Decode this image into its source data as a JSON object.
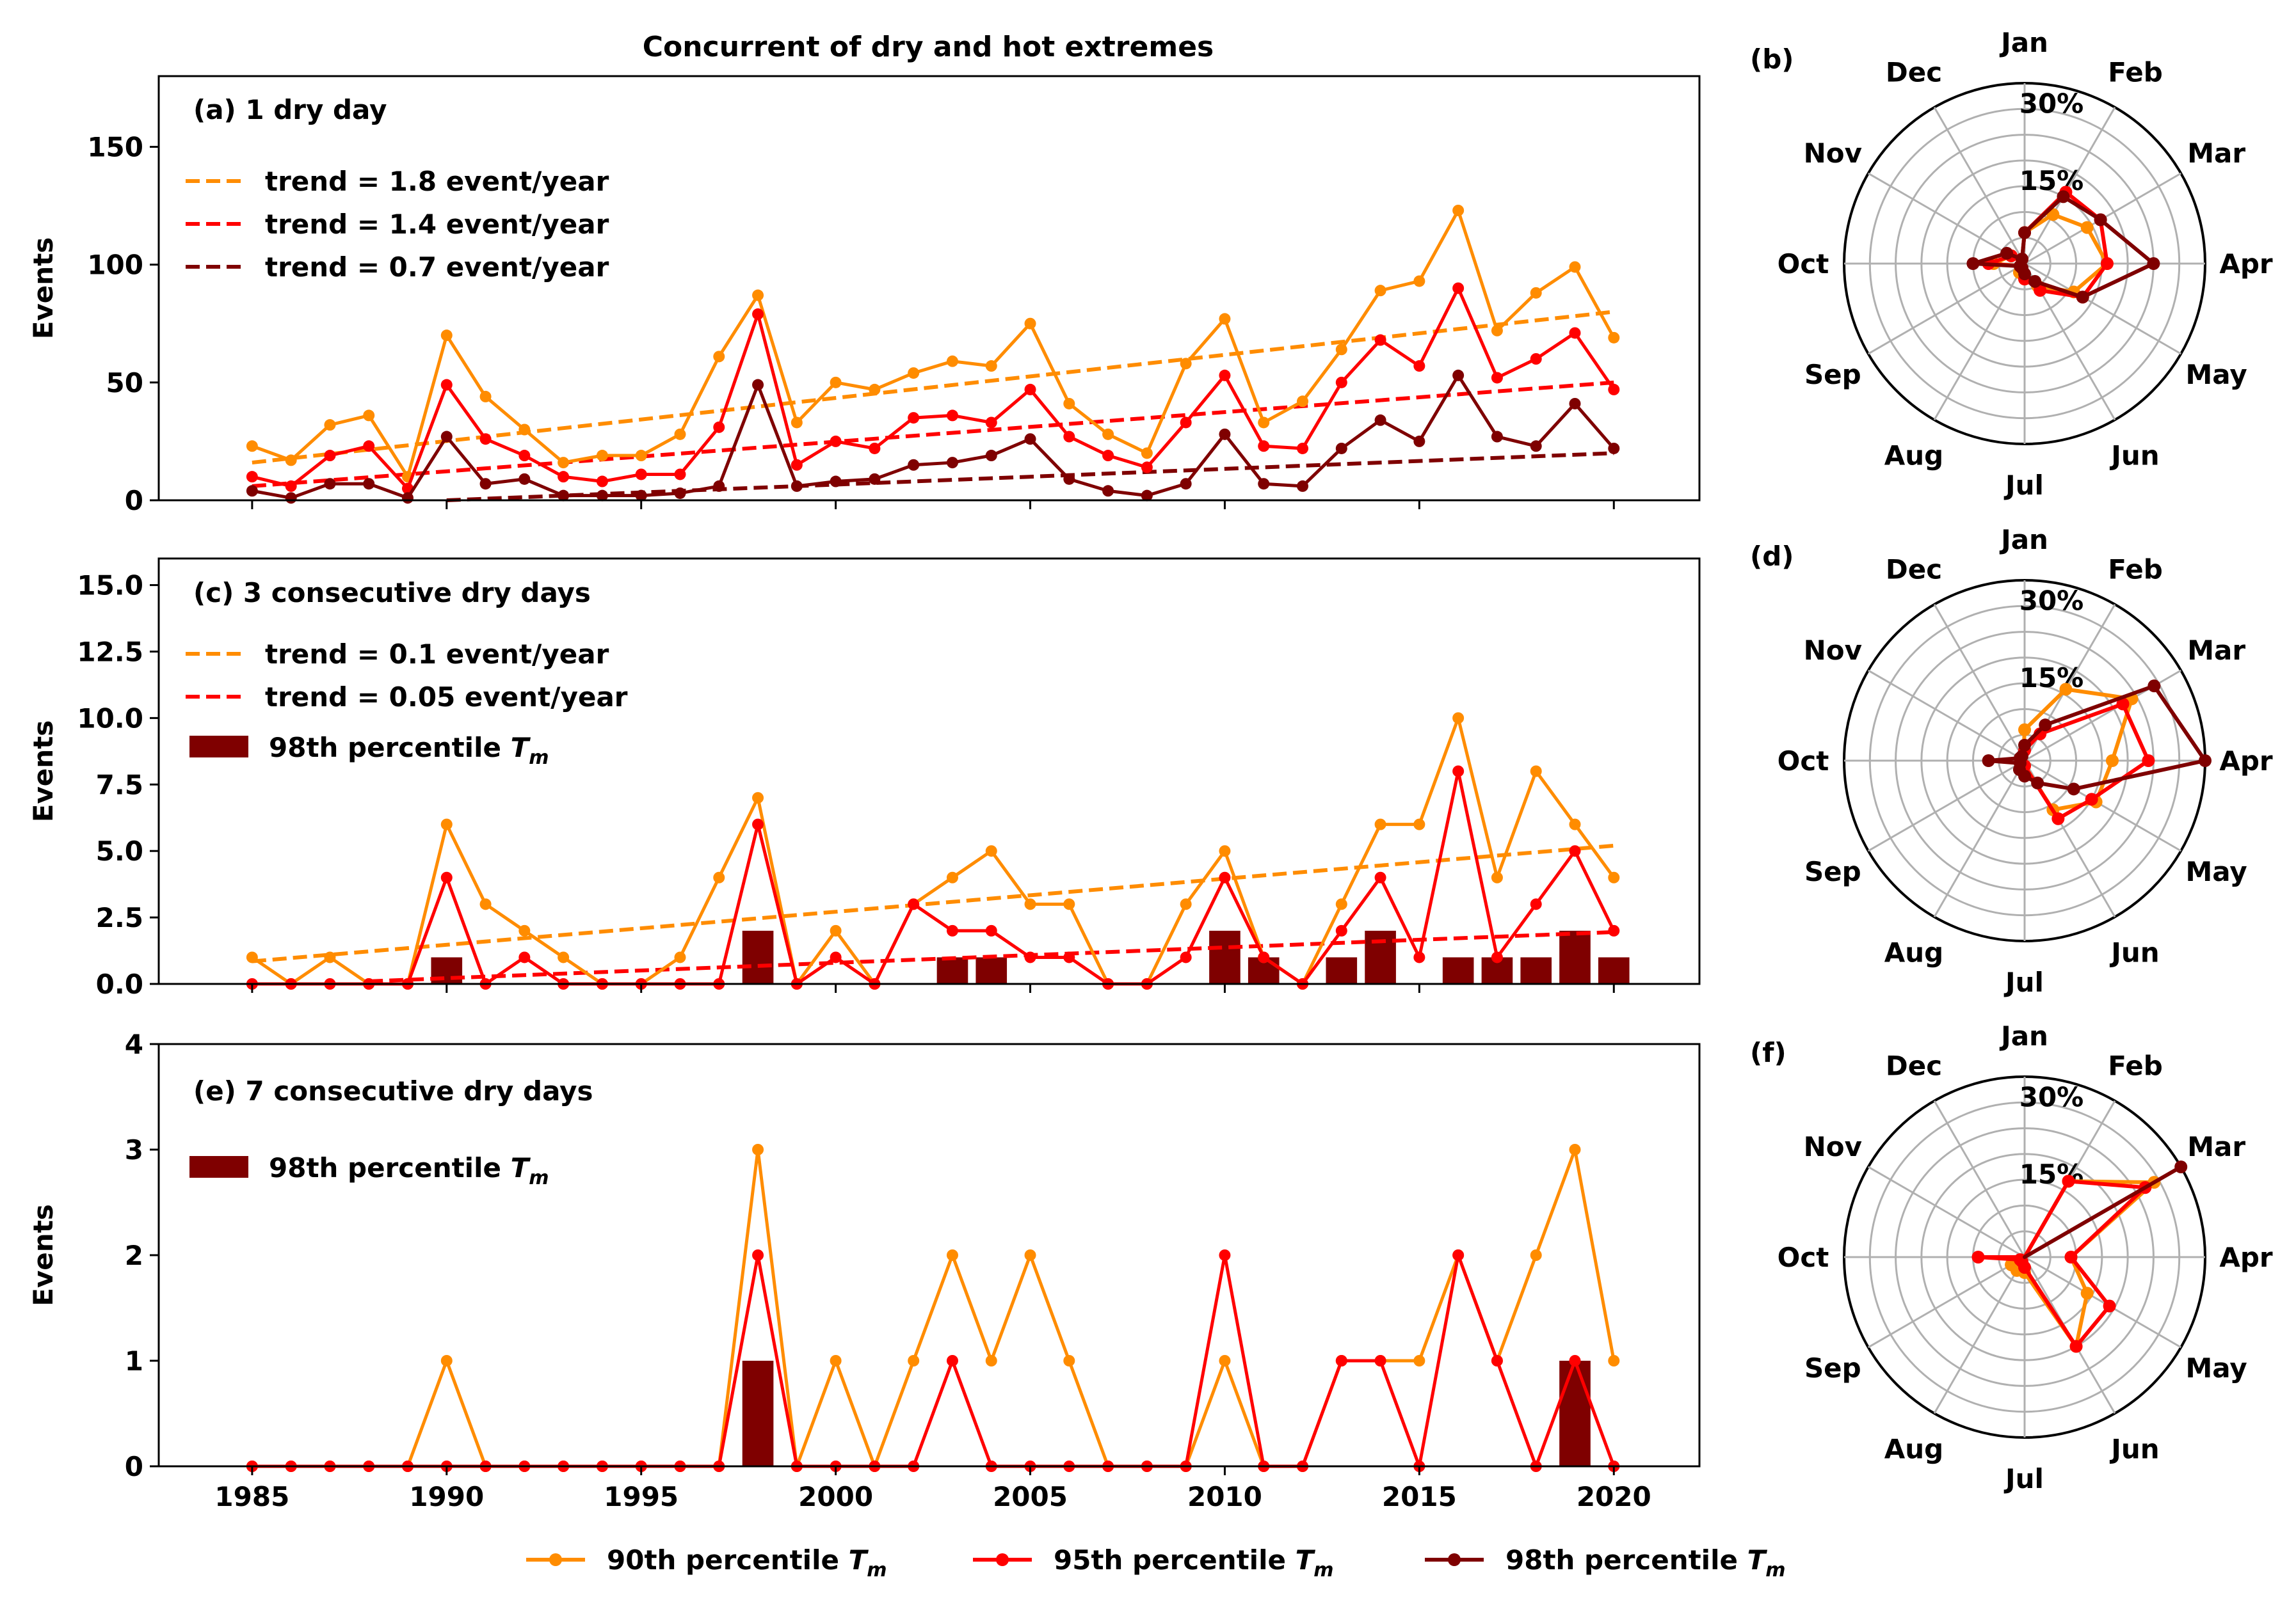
{
  "title": "Concurrent of dry and hot extremes",
  "colors": {
    "p90": "#ff8c00",
    "p95": "#ff0000",
    "p98": "#7f0000",
    "grid": "#b0b0b0"
  },
  "bottom_legend": {
    "p90": {
      "label": "90th percentile ",
      "sub_main": "T",
      "sub_index": "m"
    },
    "p95": {
      "label": "95th percentile ",
      "sub_main": "T",
      "sub_index": "m"
    },
    "p98": {
      "label": "98th percentile ",
      "sub_main": "T",
      "sub_index": "m"
    }
  },
  "chart_data": [
    {
      "id": "a",
      "type": "line",
      "panel_label": "(a) 1 dry day",
      "ylabel": "Events",
      "xlim": [
        1982.6,
        2022.2
      ],
      "ylim": [
        0,
        180
      ],
      "yticks": [
        0,
        50,
        100,
        150
      ],
      "ytick_labels": [
        "0",
        "50",
        "100",
        "150"
      ],
      "xticks": [
        1985,
        1990,
        1995,
        2000,
        2005,
        2010,
        2015,
        2020
      ],
      "show_xtick_labels": false,
      "x": [
        1985,
        1986,
        1987,
        1988,
        1989,
        1990,
        1991,
        1992,
        1993,
        1994,
        1995,
        1996,
        1997,
        1998,
        1999,
        2000,
        2001,
        2002,
        2003,
        2004,
        2005,
        2006,
        2007,
        2008,
        2009,
        2010,
        2011,
        2012,
        2013,
        2014,
        2015,
        2016,
        2017,
        2018,
        2019,
        2020
      ],
      "series": [
        {
          "name": "90th percentile Tm",
          "key": "p90",
          "values": [
            23,
            17,
            32,
            36,
            10,
            70,
            44,
            30,
            16,
            19,
            19,
            28,
            61,
            87,
            33,
            50,
            47,
            54,
            59,
            57,
            75,
            41,
            28,
            20,
            58,
            77,
            33,
            42,
            64,
            89,
            93,
            123,
            72,
            88,
            99,
            69
          ]
        },
        {
          "name": "95th percentile Tm",
          "key": "p95",
          "values": [
            10,
            6,
            19,
            23,
            5,
            49,
            26,
            19,
            10,
            8,
            11,
            11,
            31,
            79,
            15,
            25,
            22,
            35,
            36,
            33,
            47,
            27,
            19,
            14,
            33,
            53,
            23,
            22,
            50,
            68,
            57,
            90,
            52,
            60,
            71,
            47
          ]
        },
        {
          "name": "98th percentile Tm",
          "key": "p98",
          "values": [
            4,
            1,
            7,
            7,
            1,
            27,
            7,
            9,
            2,
            2,
            2,
            3,
            6,
            49,
            6,
            8,
            9,
            15,
            16,
            19,
            26,
            9,
            4,
            2,
            7,
            28,
            7,
            6,
            22,
            34,
            25,
            53,
            27,
            23,
            41,
            22
          ]
        }
      ],
      "trends": [
        {
          "key": "p90",
          "label": "trend = 1.8 event/year",
          "x": [
            1985,
            2020
          ],
          "y": [
            16,
            80
          ]
        },
        {
          "key": "p95",
          "label": "trend = 1.4 event/year",
          "x": [
            1985,
            2020
          ],
          "y": [
            6,
            50
          ]
        },
        {
          "key": "p98",
          "label": "trend = 0.7 event/year",
          "x": [
            1990,
            2020
          ],
          "y": [
            0,
            20
          ]
        }
      ],
      "bars": []
    },
    {
      "id": "c",
      "type": "line",
      "panel_label": "(c) 3 consecutive dry days",
      "ylabel": "Events",
      "xlim": [
        1982.6,
        2022.2
      ],
      "ylim": [
        0,
        16
      ],
      "yticks": [
        0,
        2.5,
        5,
        7.5,
        10,
        12.5,
        15
      ],
      "ytick_labels": [
        "0.0",
        "2.5",
        "5.0",
        "7.5",
        "10.0",
        "12.5",
        "15.0"
      ],
      "xticks": [
        1985,
        1990,
        1995,
        2000,
        2005,
        2010,
        2015,
        2020
      ],
      "show_xtick_labels": false,
      "x": [
        1985,
        1986,
        1987,
        1988,
        1989,
        1990,
        1991,
        1992,
        1993,
        1994,
        1995,
        1996,
        1997,
        1998,
        1999,
        2000,
        2001,
        2002,
        2003,
        2004,
        2005,
        2006,
        2007,
        2008,
        2009,
        2010,
        2011,
        2012,
        2013,
        2014,
        2015,
        2016,
        2017,
        2018,
        2019,
        2020
      ],
      "series": [
        {
          "name": "90th percentile Tm",
          "key": "p90",
          "values": [
            1,
            0,
            1,
            0,
            0,
            6,
            3,
            2,
            1,
            0,
            0,
            1,
            4,
            7,
            0,
            2,
            0,
            3,
            4,
            5,
            3,
            3,
            0,
            0,
            3,
            5,
            1,
            0,
            3,
            6,
            6,
            10,
            4,
            8,
            6,
            4
          ]
        },
        {
          "name": "95th percentile Tm",
          "key": "p95",
          "values": [
            0,
            0,
            0,
            0,
            0,
            4,
            0,
            1,
            0,
            0,
            0,
            0,
            0,
            6,
            0,
            1,
            0,
            3,
            2,
            2,
            1,
            1,
            0,
            0,
            1,
            4,
            1,
            0,
            2,
            4,
            1,
            8,
            1,
            3,
            5,
            2
          ]
        }
      ],
      "trends": [
        {
          "key": "p90",
          "label": "trend = 0.1 event/year",
          "x": [
            1985,
            2020
          ],
          "y": [
            0.85,
            5.2
          ]
        },
        {
          "key": "p95",
          "label": "trend = 0.05 event/year",
          "x": [
            1988,
            2020
          ],
          "y": [
            0.1,
            1.95
          ]
        }
      ],
      "bars": [
        {
          "key": "p98",
          "label": "98th percentile ",
          "sub_main": "T",
          "sub_index": "m",
          "x": [
            1990,
            1998,
            2003,
            2004,
            2010,
            2011,
            2013,
            2014,
            2016,
            2017,
            2018,
            2019,
            2020
          ],
          "values": [
            1,
            2,
            1,
            1,
            2,
            1,
            1,
            2,
            1,
            1,
            1,
            2,
            1
          ]
        }
      ]
    },
    {
      "id": "e",
      "type": "line",
      "panel_label": "(e) 7 consecutive dry days",
      "ylabel": "Events",
      "xlim": [
        1982.6,
        2022.2
      ],
      "ylim": [
        0,
        4
      ],
      "yticks": [
        0,
        1,
        2,
        3,
        4
      ],
      "ytick_labels": [
        "0",
        "1",
        "2",
        "3",
        "4"
      ],
      "xticks": [
        1985,
        1990,
        1995,
        2000,
        2005,
        2010,
        2015,
        2020
      ],
      "show_xtick_labels": true,
      "xtick_labels": [
        "1985",
        "1990",
        "1995",
        "2000",
        "2005",
        "2010",
        "2015",
        "2020"
      ],
      "x": [
        1985,
        1986,
        1987,
        1988,
        1989,
        1990,
        1991,
        1992,
        1993,
        1994,
        1995,
        1996,
        1997,
        1998,
        1999,
        2000,
        2001,
        2002,
        2003,
        2004,
        2005,
        2006,
        2007,
        2008,
        2009,
        2010,
        2011,
        2012,
        2013,
        2014,
        2015,
        2016,
        2017,
        2018,
        2019,
        2020
      ],
      "series": [
        {
          "name": "90th percentile Tm",
          "key": "p90",
          "values": [
            0,
            0,
            0,
            0,
            0,
            1,
            0,
            0,
            0,
            0,
            0,
            0,
            0,
            3,
            0,
            1,
            0,
            1,
            2,
            1,
            2,
            1,
            0,
            0,
            0,
            1,
            0,
            0,
            1,
            1,
            1,
            2,
            1,
            2,
            3,
            1
          ]
        },
        {
          "name": "95th percentile Tm",
          "key": "p95",
          "values": [
            0,
            0,
            0,
            0,
            0,
            0,
            0,
            0,
            0,
            0,
            0,
            0,
            0,
            2,
            0,
            0,
            0,
            0,
            1,
            0,
            0,
            0,
            0,
            0,
            0,
            2,
            0,
            0,
            1,
            1,
            0,
            2,
            1,
            0,
            1,
            0
          ]
        }
      ],
      "trends": [],
      "bars": [
        {
          "key": "p98",
          "label": "98th percentile ",
          "sub_main": "T",
          "sub_index": "m",
          "x": [
            1998,
            2019
          ],
          "values": [
            1,
            1
          ]
        }
      ]
    },
    {
      "id": "b",
      "type": "radar",
      "panel_label": "(b)",
      "months": [
        "Jan",
        "Feb",
        "Mar",
        "Apr",
        "May",
        "Jun",
        "Jul",
        "Aug",
        "Sep",
        "Oct",
        "Nov",
        "Dec"
      ],
      "rmax": 35,
      "rings": [
        5,
        10,
        15,
        20,
        25,
        30,
        35
      ],
      "ring_labels": [
        {
          "r": 15,
          "text": "15%"
        },
        {
          "r": 30,
          "text": "30%"
        }
      ],
      "series": [
        {
          "key": "p90",
          "values": [
            6,
            11,
            14,
            16,
            11,
            5,
            3,
            2,
            1,
            6,
            3,
            1
          ]
        },
        {
          "key": "p95",
          "values": [
            6,
            16,
            17,
            16,
            13,
            6,
            3,
            1,
            1,
            7,
            3,
            1
          ]
        },
        {
          "key": "p98",
          "values": [
            6,
            15,
            17,
            25,
            13,
            4,
            2,
            1,
            1,
            10,
            4,
            1
          ]
        }
      ]
    },
    {
      "id": "d",
      "type": "radar",
      "panel_label": "(d)",
      "months": [
        "Jan",
        "Feb",
        "Mar",
        "Apr",
        "May",
        "Jun",
        "Jul",
        "Aug",
        "Sep",
        "Oct",
        "Nov",
        "Dec"
      ],
      "rmax": 35,
      "rings": [
        5,
        10,
        15,
        20,
        25,
        30,
        35
      ],
      "ring_labels": [
        {
          "r": 15,
          "text": "15%"
        },
        {
          "r": 30,
          "text": "30%"
        }
      ],
      "series": [
        {
          "key": "p90",
          "values": [
            6,
            16,
            24,
            17,
            16,
            11,
            1,
            1,
            0.5,
            0.5,
            0.5,
            0.5
          ]
        },
        {
          "key": "p95",
          "values": [
            2,
            6,
            22,
            24,
            15,
            13,
            1,
            1,
            0.5,
            0.5,
            0.5,
            0.5
          ]
        },
        {
          "key": "p98",
          "values": [
            3,
            8,
            29,
            35,
            11,
            5,
            3,
            2,
            1,
            7,
            1,
            1
          ]
        }
      ]
    },
    {
      "id": "f",
      "type": "radar",
      "panel_label": "(f)",
      "months": [
        "Jan",
        "Feb",
        "Mar",
        "Apr",
        "May",
        "Jun",
        "Jul",
        "Aug",
        "Sep",
        "Oct",
        "Nov",
        "Dec"
      ],
      "rmax": 35,
      "rings": [
        5,
        10,
        15,
        20,
        25,
        30,
        35
      ],
      "ring_labels": [
        {
          "r": 15,
          "text": "15%"
        },
        {
          "r": 30,
          "text": "30%"
        }
      ],
      "series": [
        {
          "key": "p90",
          "values": [
            0,
            17,
            29,
            9,
            14,
            20,
            3,
            3,
            3,
            0,
            0,
            0
          ]
        },
        {
          "key": "p95",
          "values": [
            0,
            17,
            27,
            9,
            19,
            20,
            2,
            1,
            1,
            9,
            0,
            0
          ]
        },
        {
          "key": "p98",
          "values": [
            0,
            0,
            35,
            0,
            0,
            0,
            0,
            0,
            0,
            0,
            0,
            0
          ]
        }
      ]
    }
  ]
}
